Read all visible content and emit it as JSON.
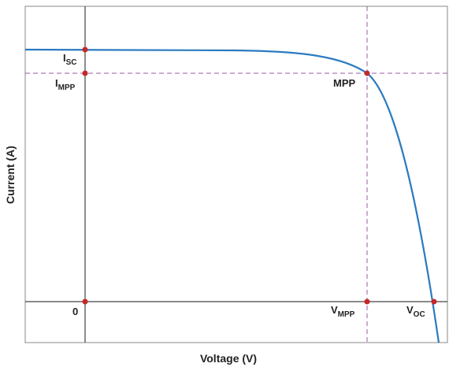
{
  "axes": {
    "x_label": "Voltage (V)",
    "y_label": "Current (A)"
  },
  "points": [
    {
      "label": "I",
      "sub": "SC"
    },
    {
      "label": "I",
      "sub": "MPP"
    },
    {
      "label": "MPP"
    },
    {
      "label": "0"
    },
    {
      "label": "V",
      "sub": "MPP"
    },
    {
      "label": "V",
      "sub": "OC"
    }
  ]
}
